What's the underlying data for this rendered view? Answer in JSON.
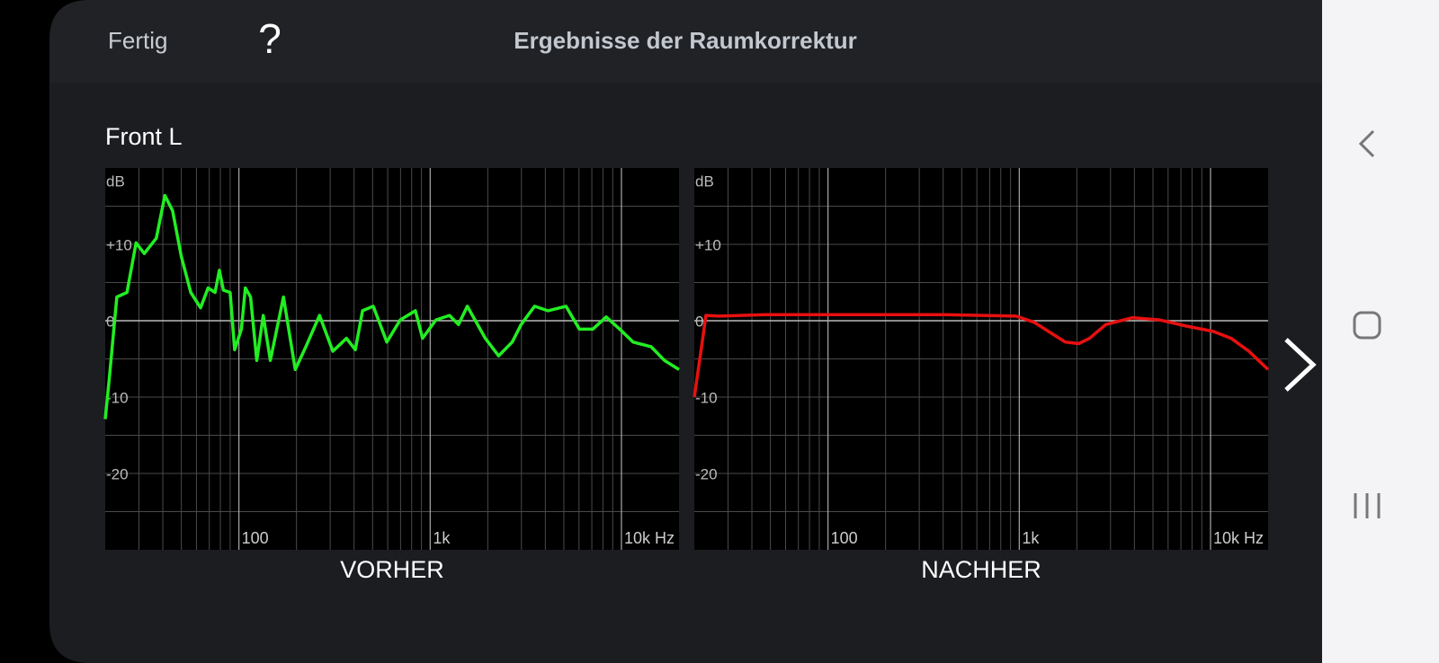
{
  "header": {
    "done": "Fertig",
    "help": "?",
    "title": "Ergebnisse der Raumkorrektur"
  },
  "section": "Front L",
  "chart_data": [
    {
      "type": "line",
      "title": "VORHER",
      "y_label": "dB",
      "color": "#22ee22",
      "x": [
        20,
        21,
        23,
        26,
        29,
        32,
        37,
        41,
        45,
        50,
        56,
        63,
        69,
        75,
        79,
        83,
        90,
        95,
        103,
        108,
        115,
        124,
        134,
        146,
        171,
        197,
        224,
        264,
        310,
        365,
        406,
        443,
        504,
        593,
        697,
        837,
        912,
        1072,
        1262,
        1406,
        1564,
        1941,
        2280,
        2685,
        2987,
        3515,
        4130,
        5128,
        6026,
        7080,
        8318,
        9795,
        11508,
        14289,
        16788,
        20000
      ],
      "values": [
        -12.9,
        -7.6,
        3.1,
        3.7,
        10.2,
        8.8,
        10.8,
        16.4,
        14.4,
        8.4,
        3.7,
        1.7,
        4.3,
        3.7,
        6.6,
        4.0,
        3.7,
        -3.8,
        -1.1,
        4.3,
        3.1,
        -5.2,
        0.7,
        -5.2,
        3.1,
        -6.4,
        -3.4,
        0.7,
        -4.0,
        -2.3,
        -3.8,
        1.3,
        1.9,
        -2.8,
        0.1,
        1.3,
        -2.3,
        0.1,
        0.7,
        -0.5,
        1.9,
        -2.3,
        -4.6,
        -2.8,
        -0.5,
        1.9,
        1.3,
        1.9,
        -1.1,
        -1.1,
        0.5,
        -1.1,
        -2.8,
        -3.4,
        -5.2,
        -6.4
      ],
      "log_x": true,
      "grid": true,
      "xlim": [
        20,
        20000
      ],
      "xticks": [
        100,
        {
          "value": 1000,
          "label": "1k"
        },
        {
          "value": 10000,
          "label": "10k Hz"
        }
      ],
      "ylim": [
        -30,
        20
      ],
      "yticks": [
        {
          "value": 10,
          "label": "+10"
        },
        0,
        -10,
        -20
      ],
      "ygrid": [
        15,
        5,
        -5,
        -15,
        -25
      ]
    },
    {
      "type": "line",
      "title": "NACHHER",
      "y_label": "dB",
      "color": "#e81010",
      "x": [
        20,
        22,
        23,
        27,
        47,
        138,
        406,
        964,
        1195,
        1483,
        1742,
        2047,
        2331,
        2831,
        3915,
        5411,
        7480,
        10335,
        12819,
        15887,
        20000
      ],
      "values": [
        -10,
        -2.8,
        0.7,
        0.6,
        0.8,
        0.8,
        0.8,
        0.6,
        -0.2,
        -1.7,
        -2.8,
        -3.0,
        -2.3,
        -0.5,
        0.4,
        0.1,
        -0.7,
        -1.4,
        -2.3,
        -4.0,
        -6.4
      ],
      "log_x": true,
      "grid": true,
      "xlim": [
        20,
        20000
      ],
      "xticks": [
        100,
        {
          "value": 1000,
          "label": "1k"
        },
        {
          "value": 10000,
          "label": "10k Hz"
        }
      ],
      "ylim": [
        -30,
        20
      ],
      "yticks": [
        {
          "value": 10,
          "label": "+10"
        },
        0,
        -10,
        -20
      ],
      "ygrid": [
        15,
        5,
        -5,
        -15,
        -25
      ]
    }
  ]
}
